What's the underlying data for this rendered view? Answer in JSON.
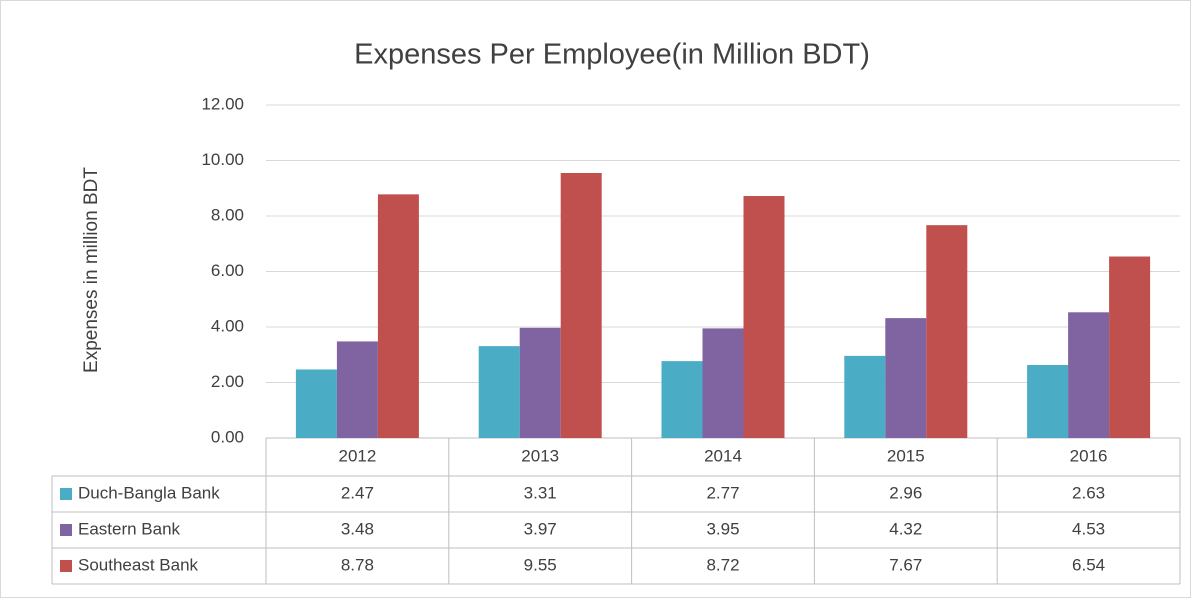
{
  "chart_data": {
    "type": "bar",
    "title": "Expenses Per Employee(in Million BDT)",
    "y_label": "Expenses in million BDT",
    "categories": [
      "2012",
      "2013",
      "2014",
      "2015",
      "2016"
    ],
    "series": [
      {
        "name": "Duch-Bangla Bank",
        "color": "#4bacc6",
        "values": [
          2.47,
          3.31,
          2.77,
          2.96,
          2.63
        ]
      },
      {
        "name": "Eastern Bank",
        "color": "#8064a2",
        "values": [
          3.48,
          3.97,
          3.95,
          4.32,
          4.53
        ]
      },
      {
        "name": "Southeast Bank",
        "color": "#c0504d",
        "values": [
          8.78,
          9.55,
          8.72,
          7.67,
          6.54
        ]
      }
    ],
    "ylim": [
      0,
      12
    ],
    "yticks": [
      {
        "value": 0,
        "label": "0.00"
      },
      {
        "value": 2,
        "label": "2.00"
      },
      {
        "value": 4,
        "label": "4.00"
      },
      {
        "value": 6,
        "label": "6.00"
      },
      {
        "value": 8,
        "label": "8.00"
      },
      {
        "value": 10,
        "label": "10.00"
      },
      {
        "value": 12,
        "label": "12.00"
      }
    ],
    "grid": true
  }
}
